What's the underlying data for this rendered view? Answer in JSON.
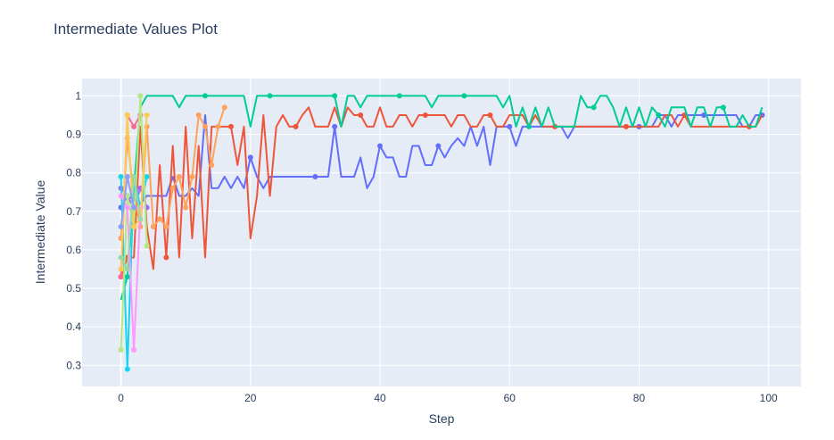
{
  "chart_data": {
    "type": "line",
    "title": "Intermediate Values Plot",
    "xlabel": "Step",
    "ylabel": "Intermediate Value",
    "xlim": [
      -6,
      105
    ],
    "ylim": [
      0.245,
      1.045
    ],
    "xticks": [
      0,
      20,
      40,
      60,
      80,
      100
    ],
    "yticks": [
      0.3,
      0.4,
      0.5,
      0.6,
      0.7,
      0.8,
      0.9,
      1
    ],
    "ytick_labels": [
      "0.3",
      "0.4",
      "0.5",
      "0.6",
      "0.7",
      "0.8",
      "0.9",
      "1"
    ],
    "grid": true,
    "legend": false,
    "colors": {
      "plot_bg": "#e5ecf6",
      "grid": "#ffffff",
      "text": "#2a3f5f"
    },
    "series": [
      {
        "color": "#636efa",
        "x": [
          0,
          1,
          2,
          3,
          4,
          5,
          6,
          7,
          8,
          9,
          10,
          11,
          12,
          13,
          14,
          15,
          16,
          17,
          18,
          19,
          20,
          21,
          22,
          23,
          24,
          25,
          26,
          27,
          28,
          29,
          30,
          31,
          32,
          33,
          34,
          35,
          36,
          37,
          38,
          39,
          40,
          41,
          42,
          43,
          44,
          45,
          46,
          47,
          48,
          49,
          50,
          51,
          52,
          53,
          54,
          55,
          56,
          57,
          58,
          59,
          60,
          61,
          62,
          63,
          64,
          65,
          66,
          67,
          68,
          69,
          70,
          71,
          72,
          73,
          74,
          75,
          76,
          77,
          78,
          79,
          80,
          81,
          82,
          83,
          84,
          85,
          86,
          87,
          88,
          89,
          90,
          91,
          92,
          93,
          94,
          95,
          96,
          97,
          98,
          99
        ],
        "y": [
          0.71,
          0.74,
          0.73,
          0.72,
          0.74,
          0.74,
          0.74,
          0.74,
          0.79,
          0.74,
          0.74,
          0.76,
          0.74,
          0.95,
          0.76,
          0.76,
          0.79,
          0.76,
          0.79,
          0.76,
          0.84,
          0.79,
          0.76,
          0.79,
          0.79,
          0.79,
          0.79,
          0.79,
          0.79,
          0.79,
          0.79,
          0.79,
          0.79,
          0.92,
          0.79,
          0.79,
          0.79,
          0.84,
          0.76,
          0.79,
          0.87,
          0.84,
          0.84,
          0.79,
          0.79,
          0.87,
          0.87,
          0.82,
          0.82,
          0.87,
          0.84,
          0.87,
          0.89,
          0.87,
          0.92,
          0.87,
          0.92,
          0.82,
          0.92,
          0.92,
          0.92,
          0.87,
          0.92,
          0.92,
          0.92,
          0.92,
          0.92,
          0.92,
          0.92,
          0.89,
          0.92,
          0.92,
          0.92,
          0.92,
          0.92,
          0.92,
          0.92,
          0.92,
          0.92,
          0.92,
          0.92,
          0.92,
          0.92,
          0.95,
          0.95,
          0.92,
          0.95,
          0.95,
          0.95,
          0.95,
          0.95,
          0.95,
          0.95,
          0.95,
          0.95,
          0.95,
          0.92,
          0.92,
          0.95,
          0.95
        ],
        "markers_x": [
          0,
          1,
          20,
          30,
          33,
          40,
          49,
          60,
          80,
          90,
          99
        ]
      },
      {
        "color": "#ef553b",
        "x": [
          0,
          1,
          2,
          3,
          4,
          5,
          6,
          7,
          8,
          9,
          10,
          11,
          12,
          13,
          14,
          15,
          16,
          17,
          18,
          19,
          20,
          21,
          22,
          23,
          24,
          25,
          26,
          27,
          28,
          29,
          30,
          31,
          32,
          33,
          34,
          35,
          36,
          37,
          38,
          39,
          40,
          41,
          42,
          43,
          44,
          45,
          46,
          47,
          48,
          49,
          50,
          51,
          52,
          53,
          54,
          55,
          56,
          57,
          58,
          59,
          60,
          61,
          62,
          63,
          64,
          65,
          66,
          67,
          68,
          69,
          70,
          71,
          72,
          73,
          74,
          75,
          76,
          77,
          78,
          79,
          80,
          81,
          82,
          83,
          84,
          85,
          86,
          87,
          88,
          89,
          90,
          91,
          92,
          93,
          94,
          95,
          96,
          97,
          98,
          99
        ],
        "y": [
          0.53,
          0.58,
          0.58,
          0.92,
          0.66,
          0.55,
          0.82,
          0.58,
          0.87,
          0.58,
          0.92,
          0.63,
          0.87,
          0.58,
          0.92,
          0.92,
          0.92,
          0.92,
          0.82,
          0.92,
          0.63,
          0.74,
          0.95,
          0.74,
          0.92,
          0.95,
          0.92,
          0.92,
          0.95,
          0.97,
          0.92,
          0.92,
          0.92,
          0.97,
          0.92,
          0.97,
          0.95,
          0.95,
          0.92,
          0.92,
          0.97,
          0.92,
          0.92,
          0.95,
          0.95,
          0.92,
          0.95,
          0.95,
          0.95,
          0.95,
          0.95,
          0.92,
          0.95,
          0.95,
          0.92,
          0.92,
          0.95,
          0.95,
          0.92,
          0.92,
          0.95,
          0.95,
          0.95,
          0.92,
          0.95,
          0.92,
          0.92,
          0.92,
          0.92,
          0.92,
          0.92,
          0.92,
          0.92,
          0.92,
          0.92,
          0.92,
          0.92,
          0.92,
          0.92,
          0.92,
          0.92,
          0.92,
          0.92,
          0.92,
          0.95,
          0.95,
          0.92,
          0.95,
          0.92,
          0.92,
          0.92,
          0.92,
          0.92,
          0.92,
          0.92,
          0.92,
          0.92,
          0.92,
          0.92,
          0.95
        ],
        "markers_x": [
          0,
          1,
          7,
          17,
          27,
          37,
          47,
          57,
          67,
          78,
          87,
          97
        ]
      },
      {
        "color": "#00cc96",
        "x": [
          0,
          1,
          2,
          3,
          4,
          5,
          6,
          7,
          8,
          9,
          10,
          11,
          12,
          13,
          14,
          15,
          16,
          17,
          18,
          19,
          20,
          21,
          22,
          23,
          24,
          25,
          26,
          27,
          28,
          29,
          30,
          31,
          32,
          33,
          34,
          35,
          36,
          37,
          38,
          39,
          40,
          41,
          42,
          43,
          44,
          45,
          46,
          47,
          48,
          49,
          50,
          51,
          52,
          53,
          54,
          55,
          56,
          57,
          58,
          59,
          60,
          61,
          62,
          63,
          64,
          65,
          66,
          67,
          68,
          69,
          70,
          71,
          72,
          73,
          74,
          75,
          76,
          77,
          78,
          79,
          80,
          81,
          82,
          83,
          84,
          85,
          86,
          87,
          88,
          89,
          90,
          91,
          92,
          93,
          94,
          95,
          96,
          97,
          98,
          99
        ],
        "y": [
          0.47,
          0.53,
          0.76,
          0.97,
          1.0,
          1.0,
          1.0,
          1.0,
          1.0,
          0.97,
          1.0,
          1.0,
          1.0,
          1.0,
          1.0,
          1.0,
          1.0,
          1.0,
          1.0,
          1.0,
          0.92,
          1.0,
          1.0,
          1.0,
          1.0,
          1.0,
          1.0,
          1.0,
          1.0,
          1.0,
          1.0,
          1.0,
          1.0,
          1.0,
          0.92,
          1.0,
          1.0,
          0.97,
          1.0,
          1.0,
          1.0,
          1.0,
          1.0,
          1.0,
          1.0,
          1.0,
          1.0,
          1.0,
          0.97,
          1.0,
          1.0,
          1.0,
          1.0,
          1.0,
          1.0,
          1.0,
          1.0,
          1.0,
          1.0,
          0.97,
          1.0,
          0.92,
          0.97,
          0.92,
          0.97,
          0.92,
          0.97,
          0.92,
          0.92,
          0.92,
          0.92,
          1.0,
          0.97,
          0.97,
          1.0,
          1.0,
          0.97,
          0.92,
          0.97,
          0.92,
          0.97,
          0.92,
          0.97,
          0.95,
          0.92,
          0.97,
          0.97,
          0.97,
          0.92,
          0.97,
          0.97,
          0.92,
          0.97,
          0.97,
          0.92,
          0.92,
          0.95,
          0.92,
          0.92,
          0.97
        ],
        "markers_x": [
          1,
          13,
          23,
          33,
          43,
          53,
          63,
          73,
          83,
          93
        ]
      },
      {
        "color": "#ab63fa",
        "x": [
          0,
          1,
          2,
          3,
          4
        ],
        "y": [
          0.76,
          0.74,
          0.71,
          0.76,
          0.71
        ],
        "markers_x": [
          0,
          1,
          2,
          3,
          4
        ]
      },
      {
        "color": "#ffa15a",
        "x": [
          0,
          1,
          2,
          3,
          4,
          5,
          6,
          7,
          8,
          9,
          10,
          11,
          12,
          13,
          14,
          15,
          16
        ],
        "y": [
          0.63,
          0.89,
          0.74,
          0.66,
          0.92,
          0.66,
          0.68,
          0.66,
          0.76,
          0.79,
          0.71,
          0.79,
          0.95,
          0.92,
          0.82,
          0.92,
          0.97
        ],
        "markers_x": [
          0,
          1,
          2,
          3,
          4,
          5,
          6,
          7,
          8,
          9,
          10,
          11,
          12,
          13,
          14,
          15,
          16
        ]
      },
      {
        "color": "#19d3f3",
        "x": [
          0,
          1,
          2,
          3,
          4
        ],
        "y": [
          0.79,
          0.29,
          0.79,
          0.71,
          0.79
        ],
        "markers_x": [
          0,
          1,
          2,
          3,
          4
        ]
      },
      {
        "color": "#ff6692",
        "x": [
          0,
          1,
          2,
          3
        ],
        "y": [
          0.53,
          0.95,
          0.92,
          0.95
        ],
        "markers_x": [
          0,
          1,
          2,
          3
        ]
      },
      {
        "color": "#b6e880",
        "x": [
          0,
          1,
          2,
          3,
          4
        ],
        "y": [
          0.34,
          0.74,
          0.66,
          1.0,
          0.61
        ],
        "markers_x": [
          0,
          1,
          2,
          3,
          4
        ]
      },
      {
        "color": "#ff97ff",
        "x": [
          0,
          1,
          2,
          3
        ],
        "y": [
          0.74,
          0.71,
          0.34,
          0.71
        ],
        "markers_x": [
          0,
          1,
          2,
          3
        ]
      },
      {
        "color": "#fecb52",
        "x": [
          0,
          1,
          2,
          3,
          4
        ],
        "y": [
          0.55,
          0.95,
          0.66,
          0.68,
          0.95
        ],
        "markers_x": [
          0,
          1,
          2,
          3,
          4
        ]
      },
      {
        "color": "#99d8a8",
        "x": [
          0,
          1,
          2,
          3
        ],
        "y": [
          0.58,
          0.55,
          0.79,
          0.68
        ],
        "markers_x": [
          0,
          1,
          2,
          3
        ]
      },
      {
        "color": "#8c9dfc",
        "x": [
          0,
          1,
          2
        ],
        "y": [
          0.66,
          0.79,
          0.71
        ],
        "markers_x": [
          0,
          1,
          2
        ]
      }
    ]
  }
}
